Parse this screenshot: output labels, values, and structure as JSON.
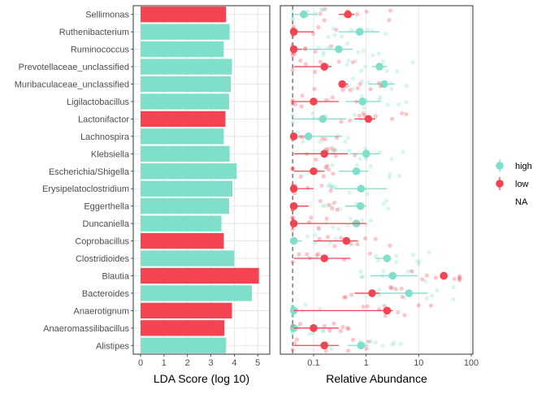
{
  "chart_data": [
    {
      "type": "bar",
      "orientation": "horizontal",
      "xlabel": "LDA Score (log 10)",
      "ylabel": "",
      "xlim": [
        0,
        5.2
      ],
      "xticks": [
        "0",
        "1",
        "2",
        "3",
        "4",
        "5"
      ],
      "grid": true,
      "categories": [
        "Sellimonas",
        "Ruthenibacterium",
        "Ruminococcus",
        "Prevotellaceae_unclassified",
        "Muribaculaceae_unclassified",
        "Ligilactobacillus",
        "Lactonifactor",
        "Lachnospira",
        "Klebsiella",
        "Escherichia/Shigella",
        "Erysipelatoclostridium",
        "Eggerthella",
        "Duncaniella",
        "Coprobacillus",
        "Clostridioides",
        "Blautia",
        "Bacteroides",
        "Anaerotignum",
        "Anaeromassilibacillus",
        "Alistipes"
      ],
      "values": [
        3.65,
        3.8,
        3.55,
        3.9,
        3.85,
        3.78,
        3.62,
        3.55,
        3.8,
        4.1,
        3.92,
        3.78,
        3.45,
        3.55,
        4.0,
        5.05,
        4.75,
        3.9,
        3.58,
        3.65
      ],
      "groups": [
        "low",
        "high",
        "high",
        "high",
        "high",
        "high",
        "low",
        "high",
        "high",
        "high",
        "high",
        "high",
        "high",
        "low",
        "high",
        "low",
        "high",
        "low",
        "low",
        "high"
      ]
    },
    {
      "type": "scatter",
      "xlabel": "Relative Abundance",
      "x_scale": "log10",
      "xlim": [
        0.025,
        100
      ],
      "xticks": [
        "0.1",
        "1",
        "10",
        "100"
      ],
      "reference_line": 0.04,
      "grid": true,
      "categories": [
        "Sellimonas",
        "Ruthenibacterium",
        "Ruminococcus",
        "Prevotellaceae_unclassified",
        "Muribaculaceae_unclassified",
        "Ligilactobacillus",
        "Lactonifactor",
        "Lachnospira",
        "Klebsiella",
        "Escherichia/Shigella",
        "Erysipelatoclostridium",
        "Eggerthella",
        "Duncaniella",
        "Coprobacillus",
        "Clostridioides",
        "Blautia",
        "Bacteroides",
        "Anaerotignum",
        "Anaeromassilibacillus",
        "Alistipes"
      ],
      "series": [
        {
          "name": "high",
          "color": "#7fdfca",
          "mean": [
            0.065,
            0.75,
            0.3,
            1.8,
            2.2,
            0.85,
            0.15,
            0.08,
            1.0,
            0.65,
            0.8,
            0.78,
            0.65,
            0.042,
            2.5,
            3.2,
            6.5,
            0.042,
            0.042,
            0.8
          ],
          "err_low": [
            0.042,
            0.3,
            0.05,
            1.3,
            1.1,
            0.4,
            0.042,
            0.042,
            0.5,
            0.3,
            0.25,
            0.4,
            0.35,
            0.04,
            1.5,
            1.2,
            1.2,
            0.04,
            0.04,
            0.45
          ],
          "err_high": [
            0.12,
            1.8,
            0.55,
            2.5,
            3.5,
            1.9,
            0.42,
            0.35,
            1.8,
            1.1,
            2.5,
            1.0,
            1.0,
            0.06,
            3.0,
            9.5,
            15,
            0.045,
            0.045,
            1.1
          ]
        },
        {
          "name": "low",
          "color": "#f44452",
          "mean": [
            0.45,
            0.042,
            0.042,
            0.16,
            0.35,
            0.1,
            1.1,
            0.042,
            0.16,
            0.1,
            0.042,
            0.042,
            0.042,
            0.42,
            0.16,
            30,
            1.3,
            2.5,
            0.1,
            0.16
          ],
          "err_low": [
            0.3,
            0.04,
            0.04,
            0.042,
            0.3,
            0.042,
            0.6,
            0.04,
            0.042,
            0.042,
            0.04,
            0.04,
            0.04,
            0.1,
            0.042,
            27,
            0.6,
            0.042,
            0.042,
            0.042
          ],
          "err_high": [
            0.6,
            0.1,
            0.06,
            0.22,
            0.45,
            0.3,
            1.5,
            0.045,
            0.45,
            0.16,
            0.1,
            0.08,
            1.0,
            0.7,
            0.5,
            33,
            1.8,
            3.2,
            0.3,
            0.3
          ]
        }
      ],
      "legend": {
        "placement": "right",
        "entries": [
          {
            "label": "high",
            "color": "#7fdfca"
          },
          {
            "label": "low",
            "color": "#f44452"
          },
          {
            "label": "NA",
            "color": ""
          }
        ]
      }
    }
  ]
}
